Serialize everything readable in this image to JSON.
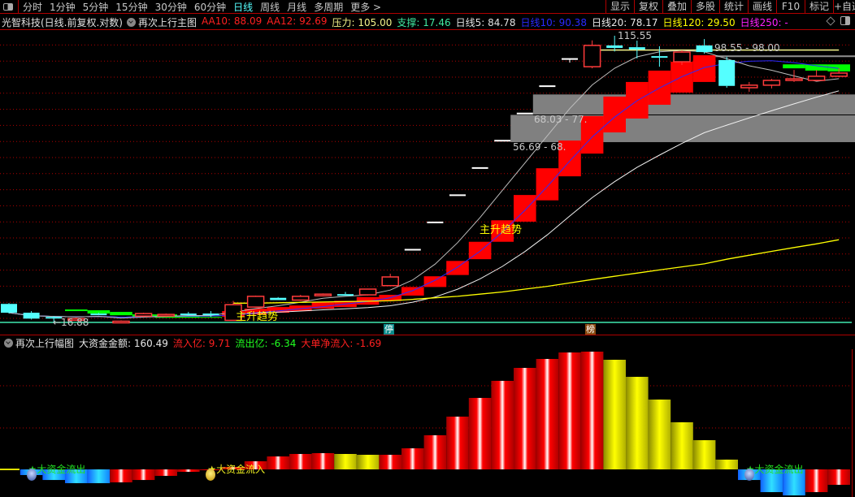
{
  "toolbar": {
    "panel_icon": "panel-toggle-icon",
    "periods": [
      "分时",
      "1分钟",
      "5分钟",
      "15分钟",
      "30分钟",
      "60分钟",
      "日线",
      "周线",
      "月线",
      "多周期",
      "更多 >"
    ],
    "active_period": "日线",
    "buttons": [
      "显示",
      "复权",
      "叠加",
      "多股",
      "统计",
      "画线",
      "F10",
      "标记",
      "+自选"
    ]
  },
  "legend": {
    "title": "光智科技(日线.前复权.对数)",
    "indicator": "再次上行主图",
    "items": [
      {
        "label": "AA10: ",
        "value": "88.09",
        "color": "#ff2020"
      },
      {
        "label": "AA12: ",
        "value": "92.69",
        "color": "#ff2020"
      },
      {
        "label": "压力: ",
        "value": "105.00",
        "color": "#f4f48a"
      },
      {
        "label": "支撑: ",
        "value": "17.46",
        "color": "#40e8a0"
      },
      {
        "label": "日线5: ",
        "value": "84.78",
        "color": "#e0e0e0"
      },
      {
        "label": "日线10: ",
        "value": "90.38",
        "color": "#2a2aff"
      },
      {
        "label": "日线20: ",
        "value": "78.17",
        "color": "#e8e8e8"
      },
      {
        "label": "日线120: ",
        "value": "29.50",
        "color": "#ffff00"
      },
      {
        "label": "日线250: ",
        "value": "-",
        "color": "#ff20ff"
      }
    ],
    "right_icons": [
      "diamond-icon",
      "window-toggle-icon"
    ]
  },
  "main": {
    "scale": "log",
    "price_range": [
      16.88,
      115.55
    ],
    "high_label": "115.55",
    "low_label": "←16.88",
    "top_box_label": "98.55 - 98.00",
    "box_labels": [
      "68.03 - 77.",
      "56.69 - 68."
    ],
    "trend_labels": [
      "主升趋势",
      "主升趋势"
    ],
    "badges": [
      {
        "text": "停",
        "color": "#0a8a8a",
        "index": 17
      },
      {
        "text": "榜",
        "color": "#8a4a10",
        "index": 26
      }
    ],
    "pressure": 105.0,
    "support": 17.46,
    "boxes": [
      {
        "lo": 68.03,
        "hi": 78.0,
        "from": 23
      },
      {
        "lo": 56.69,
        "hi": 68.03,
        "from": 22
      }
    ],
    "top_box": {
      "hi": 98.55,
      "lo": 98.0,
      "from": 31
    },
    "candles": [
      [
        19.2,
        19.3,
        18.0,
        18.1
      ],
      [
        18.1,
        18.3,
        17.3,
        17.4
      ],
      [
        17.6,
        17.7,
        16.88,
        17.5
      ],
      [
        17.3,
        17.5,
        17.2,
        17.4
      ],
      [
        18.0,
        18.1,
        17.8,
        17.9
      ],
      [
        17.0,
        17.2,
        16.95,
        17.1
      ],
      [
        17.7,
        18.1,
        17.6,
        18.0
      ],
      [
        17.8,
        18.0,
        17.6,
        17.9
      ],
      [
        18.0,
        18.2,
        17.8,
        17.95
      ],
      [
        18.0,
        18.3,
        17.6,
        17.9
      ],
      [
        17.2,
        19.6,
        17.2,
        19.1
      ],
      [
        18.8,
        20.3,
        18.8,
        20.2
      ],
      [
        20.0,
        20.1,
        19.7,
        19.7
      ],
      [
        19.7,
        20.4,
        19.6,
        20.2
      ],
      [
        20.3,
        20.6,
        20.2,
        20.5
      ],
      [
        20.5,
        20.8,
        20.3,
        20.4
      ],
      [
        20.4,
        21.2,
        20.3,
        21.2
      ],
      [
        21.7,
        23.5,
        21.7,
        23.0
      ],
      [
        27.6,
        27.6,
        27.6,
        27.6
      ],
      [
        33.12,
        33.12,
        33.12,
        33.12
      ],
      [
        39.74,
        39.74,
        39.74,
        39.74
      ],
      [
        47.69,
        47.69,
        47.69,
        47.69
      ],
      [
        57.23,
        57.23,
        57.23,
        57.23
      ],
      [
        68.68,
        68.68,
        68.68,
        68.68
      ],
      [
        82.42,
        82.42,
        82.42,
        82.42
      ],
      [
        98.9,
        98.9,
        96.5,
        98.9
      ],
      [
        93.9,
        112.0,
        92.9,
        108.3
      ],
      [
        108.3,
        115.55,
        104.0,
        106.5
      ],
      [
        107.0,
        111.8,
        99.3,
        105.4
      ],
      [
        100.8,
        107.7,
        93.9,
        99.8
      ],
      [
        97.1,
        104.8,
        95.0,
        103.6
      ],
      [
        108.3,
        113.0,
        102.5,
        103.6
      ],
      [
        98.2,
        100.3,
        81.6,
        82.6
      ],
      [
        81.6,
        84.8,
        79.4,
        83.0
      ],
      [
        83.0,
        86.6,
        81.2,
        85.7
      ],
      [
        85.7,
        91.9,
        84.8,
        86.6
      ],
      [
        85.7,
        91.9,
        85.3,
        88.1
      ],
      [
        88.1,
        92.9,
        87.5,
        90.0
      ]
    ],
    "bands": [
      {
        "i": 3,
        "lo": 18.3,
        "hi": 18.5,
        "color": "#00ff00"
      },
      {
        "i": 4,
        "lo": 18.0,
        "hi": 18.4,
        "color": "#00ff00"
      },
      {
        "i": 5,
        "lo": 17.8,
        "hi": 18.2,
        "color": "#00ff00"
      },
      {
        "i": 6,
        "lo": 17.6,
        "hi": 17.9,
        "color": "#00ff00"
      },
      {
        "i": 7,
        "lo": 17.5,
        "hi": 17.9,
        "color": "#00ff00"
      },
      {
        "i": 8,
        "lo": 17.5,
        "hi": 17.7,
        "color": "#00ff00"
      },
      {
        "i": 9,
        "lo": 17.5,
        "hi": 17.6,
        "color": "#00ff00"
      },
      {
        "i": 10,
        "lo": 17.6,
        "hi": 18.3,
        "color": "#ff0000"
      },
      {
        "i": 11,
        "lo": 17.9,
        "hi": 18.6,
        "color": "#ff0000"
      },
      {
        "i": 12,
        "lo": 18.1,
        "hi": 18.8,
        "color": "#ff0000"
      },
      {
        "i": 13,
        "lo": 18.3,
        "hi": 19.0,
        "color": "#ff0000"
      },
      {
        "i": 14,
        "lo": 18.6,
        "hi": 19.4,
        "color": "#ff0000"
      },
      {
        "i": 15,
        "lo": 18.8,
        "hi": 19.6,
        "color": "#ff0000"
      },
      {
        "i": 16,
        "lo": 19.1,
        "hi": 20.1,
        "color": "#ff0000"
      },
      {
        "i": 17,
        "lo": 19.6,
        "hi": 20.4,
        "color": "#ff0000"
      },
      {
        "i": 18,
        "lo": 20.3,
        "hi": 21.5,
        "color": "#ff0000"
      },
      {
        "i": 19,
        "lo": 21.5,
        "hi": 23.1,
        "color": "#ff0000"
      },
      {
        "i": 20,
        "lo": 23.3,
        "hi": 25.6,
        "color": "#ff0000"
      },
      {
        "i": 21,
        "lo": 25.9,
        "hi": 29.1,
        "color": "#ff0000"
      },
      {
        "i": 22,
        "lo": 29.1,
        "hi": 33.6,
        "color": "#ff0000"
      },
      {
        "i": 23,
        "lo": 33.3,
        "hi": 39.8,
        "color": "#ff0000"
      },
      {
        "i": 24,
        "lo": 38.4,
        "hi": 47.6,
        "color": "#ff0000"
      },
      {
        "i": 25,
        "lo": 45.1,
        "hi": 57.3,
        "color": "#ff0000"
      },
      {
        "i": 26,
        "lo": 52.5,
        "hi": 67.5,
        "color": "#ff0000"
      },
      {
        "i": 27,
        "lo": 60.5,
        "hi": 76.9,
        "color": "#ff0000"
      },
      {
        "i": 28,
        "lo": 66.4,
        "hi": 84.8,
        "color": "#ff0000"
      },
      {
        "i": 29,
        "lo": 72.8,
        "hi": 91.5,
        "color": "#ff0000"
      },
      {
        "i": 30,
        "lo": 79.0,
        "hi": 97.1,
        "color": "#ff0000"
      },
      {
        "i": 31,
        "lo": 84.8,
        "hi": 101.4,
        "color": "#ff0000"
      },
      {
        "i": 35,
        "lo": 92.9,
        "hi": 95.4,
        "color": "#00ff00"
      },
      {
        "i": 36,
        "lo": 91.5,
        "hi": 95.4,
        "color": "#00ff00"
      },
      {
        "i": 37,
        "lo": 91.0,
        "hi": 95.4,
        "color": "#00ff00"
      }
    ],
    "ma120": [
      null,
      null,
      null,
      null,
      null,
      null,
      null,
      null,
      null,
      null,
      19.3,
      19.3,
      19.35,
      19.4,
      19.45,
      19.5,
      19.55,
      19.6,
      19.8,
      20.0,
      20.2,
      20.5,
      20.8,
      21.2,
      21.6,
      22.1,
      22.6,
      23.1,
      23.6,
      24.1,
      24.6,
      25.1,
      25.9,
      26.6,
      27.3,
      28.0,
      28.7,
      29.5
    ],
    "colors": {
      "up": "#ff3b3b",
      "down": "#54ffff",
      "flat": "#ffffff",
      "ma5": "#bdbdbd",
      "ma10": "#2a2aff",
      "ma20": "#f0f0f0",
      "ma120": "#ffff00",
      "pressure": "#f4f48a",
      "support": "#40e8b0",
      "grid": "#b00000"
    }
  },
  "sub": {
    "title": "再次上行幅图",
    "items": [
      {
        "label": "大资金金额: ",
        "value": "160.49",
        "color": "#e8e8e8"
      },
      {
        "label": "流入亿: ",
        "value": "9.71",
        "color": "#ff2020"
      },
      {
        "label": "流出亿: ",
        "value": "-6.34",
        "color": "#20ff20"
      },
      {
        "label": "大单净流入: ",
        "value": "-1.69",
        "color": "#ff2020"
      }
    ],
    "bars": [
      {
        "v": 0,
        "c": "yellow"
      },
      {
        "v": -4.8,
        "c": "blue"
      },
      {
        "v": -9.0,
        "c": "blue"
      },
      {
        "v": -11.7,
        "c": "blue"
      },
      {
        "v": -11.7,
        "c": "blue"
      },
      {
        "v": -11.0,
        "c": "red"
      },
      {
        "v": -9.0,
        "c": "red"
      },
      {
        "v": -5.5,
        "c": "red"
      },
      {
        "v": -2.1,
        "c": "red"
      },
      {
        "v": -0.7,
        "c": "red"
      },
      {
        "v": 2.1,
        "c": "red"
      },
      {
        "v": 6.9,
        "c": "red"
      },
      {
        "v": 11.0,
        "c": "red"
      },
      {
        "v": 13.1,
        "c": "red"
      },
      {
        "v": 13.8,
        "c": "red"
      },
      {
        "v": 13.1,
        "c": "yellow"
      },
      {
        "v": 12.4,
        "c": "yellow"
      },
      {
        "v": 12.4,
        "c": "red"
      },
      {
        "v": 17.9,
        "c": "red"
      },
      {
        "v": 29.0,
        "c": "red"
      },
      {
        "v": 44.8,
        "c": "red"
      },
      {
        "v": 60.7,
        "c": "red"
      },
      {
        "v": 75.2,
        "c": "red"
      },
      {
        "v": 86.2,
        "c": "red"
      },
      {
        "v": 93.8,
        "c": "red"
      },
      {
        "v": 99.3,
        "c": "red"
      },
      {
        "v": 100,
        "c": "red"
      },
      {
        "v": 93.1,
        "c": "yellow"
      },
      {
        "v": 78.6,
        "c": "yellow"
      },
      {
        "v": 59.3,
        "c": "yellow"
      },
      {
        "v": 40.0,
        "c": "yellow"
      },
      {
        "v": 24.8,
        "c": "yellow"
      },
      {
        "v": 8.3,
        "c": "yellow"
      },
      {
        "v": -9.0,
        "c": "blue"
      },
      {
        "v": -19.3,
        "c": "blue"
      },
      {
        "v": -22.1,
        "c": "blue"
      },
      {
        "v": -19.3,
        "c": "red"
      },
      {
        "v": -13.1,
        "c": "red"
      }
    ],
    "signals": [
      {
        "text": "★大资金流出",
        "index": 1,
        "color": "#22dd22",
        "face": "sad-face-icon"
      },
      {
        "text": "★大资金流入",
        "index": 9,
        "color": "#f0f020",
        "face": "smile-face-icon"
      },
      {
        "text": "★大资金流出",
        "index": 33,
        "color": "#22dd22",
        "face": "sad-face-icon"
      }
    ]
  }
}
